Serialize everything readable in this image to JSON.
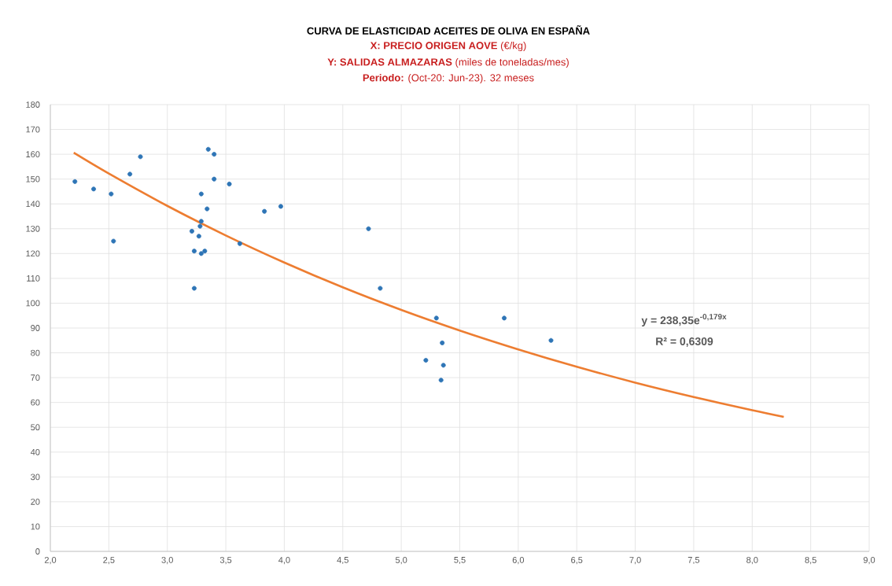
{
  "chart_data": {
    "type": "scatter",
    "title": "CURVA DE ELASTICIDAD ACEITES DE OLIVA EN ESPAÑA",
    "subtitle": "**X: PRECIO ORIGEN AOVE** (€/kg)",
    "annotations": [
      "**Y: SALIDAS ALMAZARAS** (miles de toneladas/mes)",
      "**Periodo:** (Oct-20: Jun-23). 32 meses",
      "y = 238,35e$^{-0,179x}$",
      "R² = 0,6309"
    ],
    "series": [
      {
        "color": "#2e75b6",
        "marker": "circle",
        "x": [
          2.21,
          2.37,
          2.52,
          2.54,
          2.68,
          2.77,
          3.35,
          3.4,
          3.4,
          3.53,
          3.29,
          3.34,
          3.29,
          3.28,
          3.21,
          3.27,
          3.23,
          3.29,
          3.32,
          3.23,
          3.62,
          3.83,
          3.97,
          4.72,
          4.82,
          5.3,
          5.88,
          6.28,
          5.35,
          5.21,
          5.36,
          5.34
        ],
        "values": [
          149,
          146,
          144,
          125,
          152,
          159,
          162,
          160,
          150,
          148,
          144,
          138,
          133,
          131,
          129,
          127,
          121,
          120,
          121,
          106,
          124,
          137,
          139,
          130,
          106,
          94,
          94,
          85,
          84,
          77,
          75,
          69
        ]
      },
      {
        "type": "line",
        "marker": "none",
        "color": "#ed7d31",
        "x": [
          2.2,
          2.5,
          3.0,
          3.5,
          4.0,
          4.5,
          5.0,
          5.5,
          6.0,
          6.5,
          7.0,
          7.5,
          8.0,
          8.27
        ],
        "values": [
          160.6,
          152.2,
          139.2,
          127.3,
          116.4,
          106.4,
          97.3,
          89.0,
          81.4,
          74.4,
          68.0,
          62.2,
          56.9,
          54.2
        ]
      }
    ],
    "xlim": [
      2.0,
      9.0
    ],
    "ylim": [
      0,
      180
    ],
    "xticks": [
      {
        "value": 2.0,
        "label": "2,0"
      },
      {
        "value": 2.5,
        "label": "2,5"
      },
      {
        "value": 3.0,
        "label": "3,0"
      },
      {
        "value": 3.5,
        "label": "3,5"
      },
      {
        "value": 4.0,
        "label": "4,0"
      },
      {
        "value": 4.5,
        "label": "4,5"
      },
      {
        "value": 5.0,
        "label": "5,0"
      },
      {
        "value": 5.5,
        "label": "5,5"
      },
      {
        "value": 6.0,
        "label": "6,0"
      },
      {
        "value": 6.5,
        "label": "6,5"
      },
      {
        "value": 7.0,
        "label": "7,0"
      },
      {
        "value": 7.5,
        "label": "7,5"
      },
      {
        "value": 8.0,
        "label": "8,0"
      },
      {
        "value": 8.5,
        "label": "8,5"
      },
      {
        "value": 9.0,
        "label": "9,0"
      }
    ],
    "yticks": [
      0,
      10,
      20,
      30,
      40,
      50,
      60,
      70,
      80,
      90,
      100,
      110,
      120,
      130,
      140,
      150,
      160,
      170,
      180
    ],
    "grid": true
  }
}
